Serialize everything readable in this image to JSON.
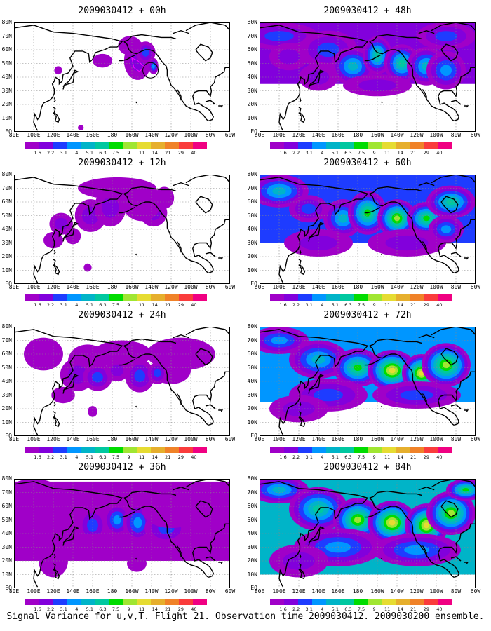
{
  "caption": "Signal Variance for u,v,T. Flight 21. Observation time 2009030412. 2009030200 ensemble.",
  "colorbar": {
    "labels": [
      "1.6",
      "2.2",
      "3.1",
      "4",
      "5.1",
      "6.3",
      "7.5",
      "9",
      "11",
      "14",
      "21",
      "29",
      "40"
    ],
    "colors": [
      "#a000c8",
      "#8200dc",
      "#1e3cff",
      "#0096ff",
      "#00b4c8",
      "#00c8a0",
      "#00dc00",
      "#a0e632",
      "#e6dc32",
      "#e6af2d",
      "#f08228",
      "#fa3c3c",
      "#f00082"
    ]
  },
  "axes": {
    "lat_labels": [
      "80N",
      "70N",
      "60N",
      "50N",
      "40N",
      "30N",
      "20N",
      "10N",
      "EQ"
    ],
    "lon_labels": [
      "80E",
      "100E",
      "120E",
      "140E",
      "160E",
      "180",
      "160W",
      "140W",
      "120W",
      "100W",
      "80W",
      "60W"
    ]
  },
  "panels": [
    {
      "title": "2009030412 + 00h",
      "level": 0
    },
    {
      "title": "2009030412 + 48h",
      "level": 4
    },
    {
      "title": "2009030412 + 12h",
      "level": 1
    },
    {
      "title": "2009030412 + 60h",
      "level": 5
    },
    {
      "title": "2009030412 + 24h",
      "level": 2
    },
    {
      "title": "2009030412 + 72h",
      "level": 6
    },
    {
      "title": "2009030412 + 36h",
      "level": 3
    },
    {
      "title": "2009030412 + 84h",
      "level": 7
    }
  ]
}
